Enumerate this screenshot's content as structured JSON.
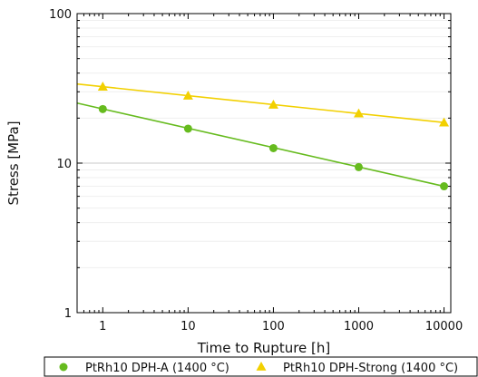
{
  "chart_data": {
    "type": "scatter",
    "title": "",
    "xlabel": "Time to Rupture [h]",
    "ylabel": "Stress [MPa]",
    "x_scale": "log",
    "y_scale": "log",
    "xlim": [
      0.5,
      12000
    ],
    "ylim": [
      1,
      100
    ],
    "x_ticks": [
      1,
      10,
      100,
      1000,
      10000
    ],
    "x_tick_labels": [
      "1",
      "10",
      "100",
      "1000",
      "10000"
    ],
    "y_ticks": [
      1,
      10,
      100
    ],
    "y_tick_labels": [
      "1",
      "10",
      "100"
    ],
    "grid": "horizontal",
    "legend_position": "bottom",
    "series": [
      {
        "name": "PtRh10 DPH-A (1400 °C)",
        "marker": "circle",
        "color": "#66bb1e",
        "x": [
          1,
          10,
          100,
          1000,
          10000
        ],
        "y": [
          23,
          17,
          12.6,
          9.4,
          7.0
        ],
        "fit_line": {
          "x": [
            0.5,
            10000
          ],
          "y": [
            25.2,
            7.0
          ]
        }
      },
      {
        "name": "PtRh10 DPH-Strong (1400 °C)",
        "marker": "triangle",
        "color": "#f2d000",
        "x": [
          1,
          10,
          100,
          1000,
          10000
        ],
        "y": [
          32.5,
          28.3,
          24.6,
          21.5,
          18.7
        ],
        "fit_line": {
          "x": [
            0.5,
            10000
          ],
          "y": [
            33.8,
            18.7
          ]
        }
      }
    ]
  }
}
